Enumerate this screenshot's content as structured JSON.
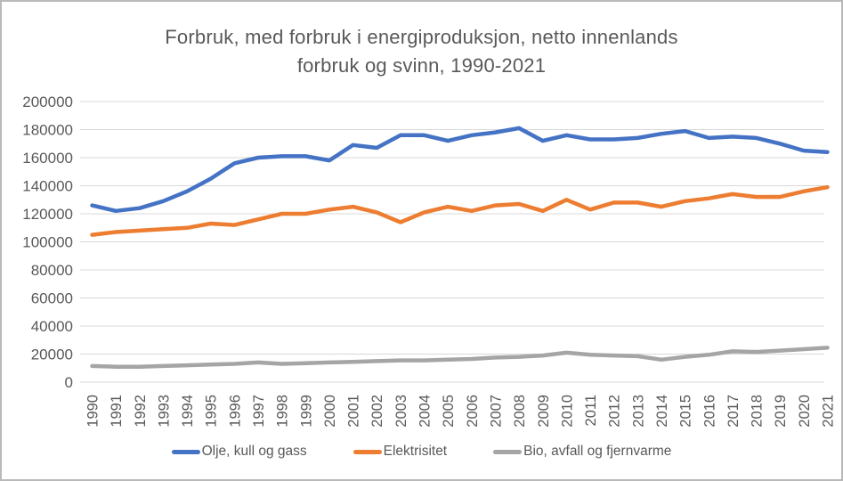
{
  "header": {
    "title_line1": "Forbruk, med forbruk i energiproduksjon, netto innenlands",
    "title_line2": "forbruk og svinn, 1990-2021"
  },
  "colors": {
    "title_text": "#595959",
    "axis_text": "#595959",
    "gridline": "#D9D9D9",
    "frame_border": "#b9b9b9",
    "background": "#ffffff"
  },
  "chart_data": {
    "type": "line",
    "title": "Forbruk, med forbruk i energiproduksjon, netto innenlands forbruk og svinn, 1990-2021",
    "xlabel": "",
    "ylabel": "",
    "ylim": [
      0,
      200000
    ],
    "ytick_step": 20000,
    "ytick_labels": [
      "0",
      "20000",
      "40000",
      "60000",
      "80000",
      "100000",
      "120000",
      "140000",
      "160000",
      "180000",
      "200000"
    ],
    "grid": true,
    "legend_position": "bottom",
    "x": [
      1990,
      1991,
      1992,
      1993,
      1994,
      1995,
      1996,
      1997,
      1998,
      1999,
      2000,
      2001,
      2002,
      2003,
      2004,
      2005,
      2006,
      2007,
      2008,
      2009,
      2010,
      2011,
      2012,
      2013,
      2014,
      2015,
      2016,
      2017,
      2018,
      2019,
      2020,
      2021
    ],
    "series": [
      {
        "name": "Olje, kull og gass",
        "color": "#4472C4",
        "values": [
          126000,
          122000,
          124000,
          129000,
          136000,
          145000,
          156000,
          160000,
          161000,
          161000,
          158000,
          169000,
          167000,
          176000,
          176000,
          172000,
          176000,
          178000,
          181000,
          172000,
          176000,
          173000,
          173000,
          174000,
          177000,
          179000,
          174000,
          175000,
          174000,
          170000,
          165000,
          164000
        ]
      },
      {
        "name": "Elektrisitet",
        "color": "#ED7D31",
        "values": [
          105000,
          107000,
          108000,
          109000,
          110000,
          113000,
          112000,
          116000,
          120000,
          120000,
          123000,
          125000,
          121000,
          114000,
          121000,
          125000,
          122000,
          126000,
          127000,
          122000,
          130000,
          123000,
          128000,
          128000,
          125000,
          129000,
          131000,
          134000,
          132000,
          132000,
          136000,
          139000
        ]
      },
      {
        "name": "Bio, avfall og fjernvarme",
        "color": "#A5A5A5",
        "values": [
          11500,
          11000,
          11000,
          11500,
          12000,
          12500,
          13000,
          14000,
          13000,
          13500,
          14000,
          14500,
          15000,
          15500,
          15500,
          16000,
          16500,
          17500,
          18000,
          19000,
          21000,
          19500,
          19000,
          18500,
          16000,
          18000,
          19500,
          22000,
          21500,
          22500,
          23500,
          24500
        ]
      }
    ]
  }
}
